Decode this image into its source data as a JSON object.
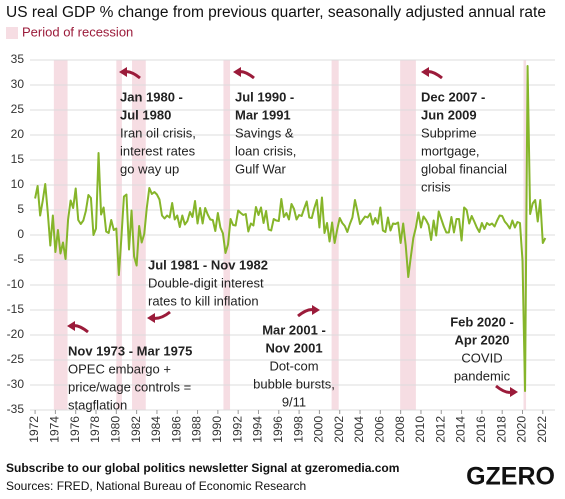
{
  "chart_data": {
    "type": "line",
    "title": "US real GDP % change from previous quarter, seasonally adjusted annual rate",
    "legend": "Period of recession",
    "recession_color": "#f6dde3",
    "color": "#86b52a",
    "grid": true,
    "xlim": [
      1971.5,
      2023.2
    ],
    "ylim": [
      -35,
      35
    ],
    "yticks": [
      -35,
      -30,
      -25,
      -20,
      -15,
      -10,
      -5,
      0,
      5,
      10,
      15,
      20,
      25,
      30,
      35
    ],
    "xticks": [
      1972,
      1974,
      1976,
      1978,
      1980,
      1982,
      1984,
      1986,
      1988,
      1990,
      1992,
      1994,
      1996,
      1998,
      2000,
      2002,
      2004,
      2006,
      2008,
      2010,
      2012,
      2014,
      2016,
      2018,
      2020,
      2022
    ],
    "recessions": [
      [
        1973.85,
        1975.2
      ],
      [
        1980.0,
        1980.55
      ],
      [
        1981.55,
        1982.9
      ],
      [
        1990.55,
        1991.2
      ],
      [
        2001.2,
        2001.9
      ],
      [
        2007.95,
        2009.5
      ],
      [
        2020.1,
        2020.35
      ]
    ],
    "x": [
      1972,
      1972.25,
      1972.5,
      1972.75,
      1973,
      1973.25,
      1973.5,
      1973.75,
      1974,
      1974.25,
      1974.5,
      1974.75,
      1975,
      1975.25,
      1975.5,
      1975.75,
      1976,
      1976.25,
      1976.5,
      1976.75,
      1977,
      1977.25,
      1977.5,
      1977.75,
      1978,
      1978.25,
      1978.5,
      1978.75,
      1979,
      1979.25,
      1979.5,
      1979.75,
      1980,
      1980.25,
      1980.5,
      1980.75,
      1981,
      1981.25,
      1981.5,
      1981.75,
      1982,
      1982.25,
      1982.5,
      1982.75,
      1983,
      1983.25,
      1983.5,
      1983.75,
      1984,
      1984.25,
      1984.5,
      1984.75,
      1985,
      1985.25,
      1985.5,
      1985.75,
      1986,
      1986.25,
      1986.5,
      1986.75,
      1987,
      1987.25,
      1987.5,
      1987.75,
      1988,
      1988.25,
      1988.5,
      1988.75,
      1989,
      1989.25,
      1989.5,
      1989.75,
      1990,
      1990.25,
      1990.5,
      1990.75,
      1991,
      1991.25,
      1991.5,
      1991.75,
      1992,
      1992.25,
      1992.5,
      1992.75,
      1993,
      1993.25,
      1993.5,
      1993.75,
      1994,
      1994.25,
      1994.5,
      1994.75,
      1995,
      1995.25,
      1995.5,
      1995.75,
      1996,
      1996.25,
      1996.5,
      1996.75,
      1997,
      1997.25,
      1997.5,
      1997.75,
      1998,
      1998.25,
      1998.5,
      1998.75,
      1999,
      1999.25,
      1999.5,
      1999.75,
      2000,
      2000.25,
      2000.5,
      2000.75,
      2001,
      2001.25,
      2001.5,
      2001.75,
      2002,
      2002.25,
      2002.5,
      2002.75,
      2003,
      2003.25,
      2003.5,
      2003.75,
      2004,
      2004.25,
      2004.5,
      2004.75,
      2005,
      2005.25,
      2005.5,
      2005.75,
      2006,
      2006.25,
      2006.5,
      2006.75,
      2007,
      2007.25,
      2007.5,
      2007.75,
      2008,
      2008.25,
      2008.5,
      2008.75,
      2009,
      2009.25,
      2009.5,
      2009.75,
      2010,
      2010.25,
      2010.5,
      2010.75,
      2011,
      2011.25,
      2011.5,
      2011.75,
      2012,
      2012.25,
      2012.5,
      2012.75,
      2013,
      2013.25,
      2013.5,
      2013.75,
      2014,
      2014.25,
      2014.5,
      2014.75,
      2015,
      2015.25,
      2015.5,
      2015.75,
      2016,
      2016.25,
      2016.5,
      2016.75,
      2017,
      2017.25,
      2017.5,
      2017.75,
      2018,
      2018.25,
      2018.5,
      2018.75,
      2019,
      2019.25,
      2019.5,
      2019.75,
      2020,
      2020.25,
      2020.5,
      2020.75,
      2021,
      2021.25,
      2021.5,
      2021.75,
      2022,
      2022.25
    ],
    "values": [
      7.3,
      9.8,
      3.9,
      6.8,
      10.2,
      4.5,
      -2.1,
      3.9,
      -3.4,
      1.0,
      -3.7,
      -1.5,
      -4.8,
      3.1,
      6.9,
      5.4,
      9.3,
      3.0,
      2.2,
      2.9,
      4.8,
      8.0,
      7.4,
      0.0,
      1.3,
      16.4,
      4.1,
      5.5,
      0.7,
      0.4,
      3.0,
      1.0,
      1.3,
      -8.0,
      -0.5,
      7.7,
      8.1,
      -2.9,
      4.9,
      -4.3,
      -6.1,
      1.8,
      -1.5,
      0.2,
      5.4,
      9.4,
      8.2,
      8.6,
      8.1,
      7.1,
      3.9,
      3.3,
      3.9,
      3.5,
      6.4,
      3.1,
      3.9,
      1.6,
      3.9,
      2.1,
      2.8,
      4.6,
      3.6,
      6.8,
      2.3,
      5.4,
      2.3,
      5.4,
      4.1,
      3.1,
      3.0,
      0.8,
      4.4,
      1.5,
      0.3,
      -3.6,
      -1.9,
      3.2,
      2.0,
      1.9,
      4.9,
      4.4,
      4.0,
      4.2,
      0.7,
      2.3,
      1.9,
      5.6,
      4.0,
      5.5,
      2.4,
      4.8,
      1.1,
      0.9,
      3.2,
      2.9,
      2.8,
      7.2,
      3.6,
      4.4,
      3.1,
      6.2,
      5.2,
      3.1,
      4.0,
      3.8,
      5.3,
      6.7,
      3.5,
      3.4,
      5.4,
      7.0,
      1.5,
      7.5,
      0.4,
      2.4,
      -1.3,
      2.5,
      -1.6,
      1.1,
      3.4,
      2.4,
      1.8,
      0.6,
      2.2,
      3.5,
      7.0,
      4.7,
      2.2,
      3.0,
      3.7,
      3.5,
      4.3,
      2.1,
      3.4,
      2.3,
      5.5,
      0.9,
      0.6,
      3.5,
      0.9,
      2.3,
      2.2,
      2.5,
      -1.6,
      2.3,
      -2.1,
      -8.4,
      -4.4,
      -0.6,
      1.5,
      4.5,
      1.5,
      3.7,
      3.0,
      2.0,
      -1.0,
      2.9,
      -0.1,
      4.7,
      3.2,
      1.7,
      0.5,
      0.5,
      3.6,
      0.5,
      3.2,
      3.2,
      -1.1,
      5.5,
      5.0,
      2.3,
      3.8,
      2.7,
      1.5,
      0.6,
      2.4,
      1.2,
      2.4,
      2.0,
      2.3,
      1.7,
      2.9,
      3.9,
      3.8,
      2.7,
      2.1,
      1.3,
      2.9,
      1.5,
      2.6,
      2.4,
      -5.1,
      -31.2,
      33.8,
      4.2,
      6.3,
      7.0,
      2.7,
      7.0,
      -1.6,
      -0.6
    ],
    "annotations": [
      {
        "title": [
          "Jan 1980 -",
          "Jul 1980"
        ],
        "text": [
          "Iran oil crisis,",
          "interest rates",
          "go way up"
        ]
      },
      {
        "title": [
          "Jul 1990 -",
          "Mar 1991"
        ],
        "text": [
          "Savings &",
          "loan crisis,",
          "Gulf War"
        ]
      },
      {
        "title": [
          "Dec 2007 -",
          "Jun 2009"
        ],
        "text": [
          "Subprime",
          "mortgage,",
          "global financial",
          "crisis"
        ]
      },
      {
        "title": [
          "Jul 1981 - Nov 1982"
        ],
        "text": [
          "Double-digit interest",
          "rates to kill inflation"
        ]
      },
      {
        "title": [
          "Nov 1973 - Mar 1975"
        ],
        "text": [
          "OPEC embargo +",
          "price/wage controls =",
          "stagflation"
        ]
      },
      {
        "title": [
          "Mar 2001 -",
          "Nov 2001"
        ],
        "text": [
          "Dot-com",
          "bubble bursts,",
          "9/11"
        ]
      },
      {
        "title": [
          "Feb 2020 -",
          "Apr 2020"
        ],
        "text": [
          "COVID",
          "pandemic"
        ]
      }
    ]
  },
  "footer": {
    "subscribe": "Subscribe to our global politics newsletter Signal at gzeromedia.com",
    "sources": "Sources: FRED, National Bureau of Economic Research",
    "logo": "GZERO"
  }
}
